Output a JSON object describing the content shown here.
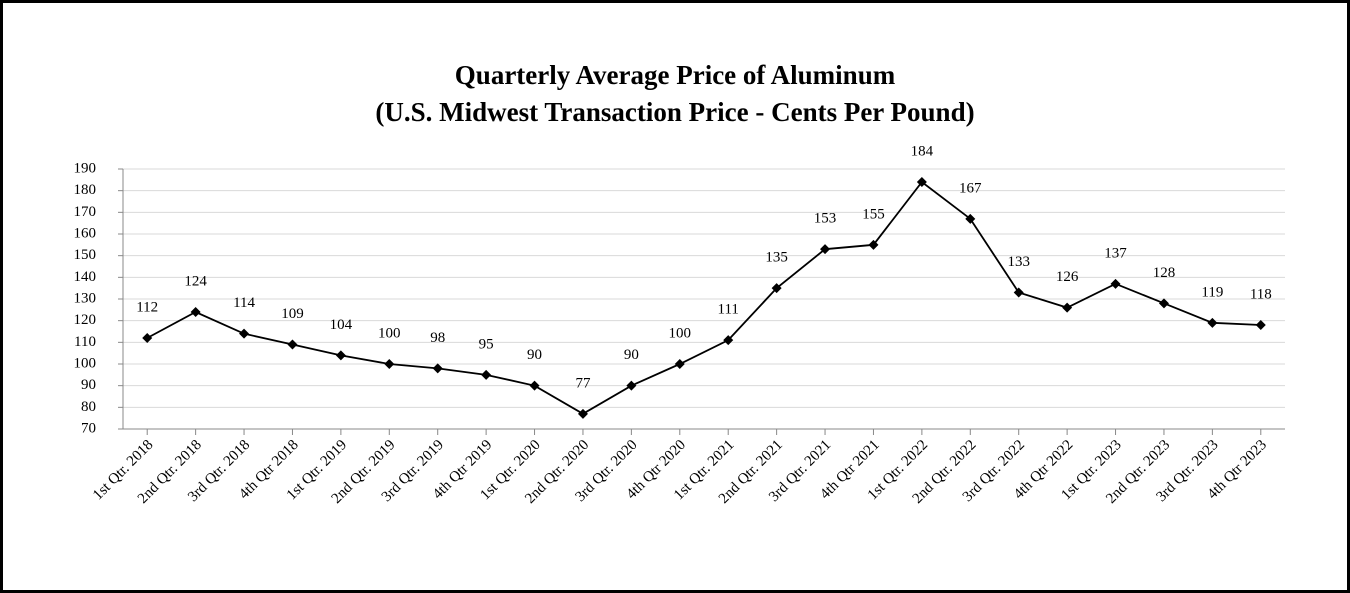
{
  "chart_data": {
    "type": "line",
    "title": [
      "Quarterly Average Price of Aluminum",
      "(U.S. Midwest Transaction Price - Cents Per Pound)"
    ],
    "categories": [
      "1st Qtr. 2018",
      "2nd Qtr. 2018",
      "3rd Qtr. 2018",
      "4th Qtr 2018",
      "1st Qtr. 2019",
      "2nd Qtr. 2019",
      "3rd Qtr. 2019",
      "4th Qtr 2019",
      "1st Qtr. 2020",
      "2nd Qtr. 2020",
      "3rd Qtr. 2020",
      "4th Qtr 2020",
      "1st Qtr. 2021",
      "2nd Qtr. 2021",
      "3rd Qtr. 2021",
      "4th Qtr 2021",
      "1st Qtr. 2022",
      "2nd Qtr. 2022",
      "3rd Qtr. 2022",
      "4th Qtr 2022",
      "1st Qtr. 2023",
      "2nd Qtr. 2023",
      "3rd Qtr. 2023",
      "4th Qtr 2023"
    ],
    "values": [
      112,
      124,
      114,
      109,
      104,
      100,
      98,
      95,
      90,
      77,
      90,
      100,
      111,
      135,
      153,
      155,
      184,
      167,
      133,
      126,
      137,
      128,
      119,
      118
    ],
    "color": "#000000",
    "ylim": [
      70,
      190
    ],
    "yticks": [
      70,
      80,
      90,
      100,
      110,
      120,
      130,
      140,
      150,
      160,
      170,
      180,
      190
    ],
    "grid": true
  }
}
